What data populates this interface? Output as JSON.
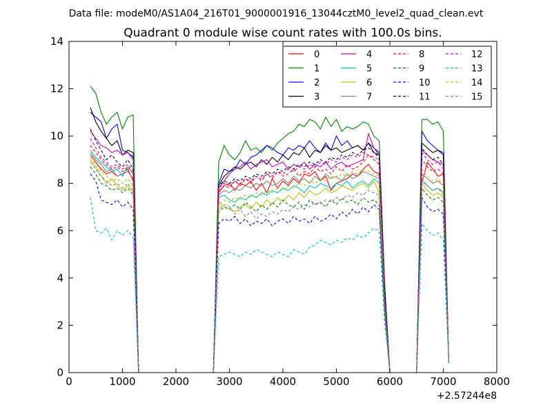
{
  "figure": {
    "suptitle": "Data file: modeM0/AS1A04_216T01_9000001916_13044cztM0_level2_quad_clean.evt"
  },
  "chart_data": {
    "type": "line",
    "title": "Quadrant 0 module wise count rates with 100.0s bins.",
    "xlabel": "",
    "ylabel": "",
    "x_offset_label": "+2.57244e8",
    "xlim": [
      0,
      8000
    ],
    "ylim": [
      0,
      14
    ],
    "x_ticks": [
      0,
      1000,
      2000,
      3000,
      4000,
      5000,
      6000,
      7000,
      8000
    ],
    "y_ticks": [
      0,
      2,
      4,
      6,
      8,
      10,
      12,
      14
    ],
    "grid": false,
    "legend": {
      "placement": "top-right",
      "columns": 4
    },
    "x": [
      400,
      500,
      600,
      700,
      800,
      900,
      1000,
      1100,
      1200,
      1300,
      1400,
      2700,
      2800,
      2900,
      3000,
      3100,
      3200,
      3300,
      3400,
      3500,
      3600,
      3700,
      3800,
      3900,
      4000,
      4100,
      4200,
      4300,
      4400,
      4500,
      4600,
      4700,
      4800,
      4900,
      5000,
      5100,
      5200,
      5300,
      5400,
      5500,
      5600,
      5700,
      5800,
      5900,
      6000,
      6500,
      6600,
      6700,
      6800,
      6900,
      7000,
      7100
    ],
    "series": [
      {
        "name": "0",
        "color": "#ff0000",
        "dash": "solid",
        "values": [
          9.2,
          8.9,
          8.6,
          8.4,
          8.5,
          8.3,
          8.4,
          8.6,
          8.1,
          0.0,
          0.0,
          0.0,
          7.6,
          7.9,
          8.0,
          7.7,
          8.0,
          7.9,
          8.1,
          7.7,
          8.0,
          7.6,
          8.2,
          7.8,
          8.1,
          7.9,
          8.2,
          8.0,
          8.4,
          8.3,
          8.5,
          8.1,
          8.3,
          7.7,
          8.0,
          8.1,
          8.2,
          8.4,
          8.3,
          8.6,
          8.8,
          8.5,
          8.4,
          3.2,
          0.0,
          0.0,
          8.0,
          8.9,
          8.6,
          8.3,
          8.4,
          0.5
        ]
      },
      {
        "name": "1",
        "color": "#008000",
        "dash": "solid",
        "values": [
          12.1,
          11.8,
          11.0,
          10.5,
          10.8,
          11.0,
          10.3,
          10.8,
          10.9,
          0.0,
          0.0,
          0.0,
          8.9,
          9.6,
          9.2,
          9.0,
          9.3,
          9.8,
          9.4,
          9.5,
          9.3,
          9.6,
          9.4,
          9.7,
          9.9,
          10.1,
          10.2,
          10.5,
          10.4,
          10.7,
          10.6,
          10.3,
          10.8,
          10.4,
          10.7,
          10.2,
          10.4,
          10.3,
          10.4,
          10.6,
          10.5,
          10.0,
          9.8,
          3.9,
          0.0,
          0.0,
          10.7,
          10.7,
          10.5,
          10.6,
          10.2,
          0.4
        ]
      },
      {
        "name": "2",
        "color": "#0000ff",
        "dash": "solid",
        "values": [
          11.0,
          10.8,
          10.6,
          9.9,
          10.3,
          10.5,
          9.4,
          9.3,
          9.1,
          0.0,
          0.0,
          0.0,
          8.0,
          8.6,
          8.5,
          8.6,
          9.0,
          8.8,
          9.1,
          9.2,
          9.4,
          9.6,
          9.5,
          9.3,
          9.2,
          9.5,
          9.4,
          9.6,
          9.5,
          9.8,
          9.5,
          9.3,
          9.7,
          9.4,
          10.0,
          9.6,
          9.8,
          9.5,
          9.6,
          9.4,
          9.7,
          9.5,
          9.3,
          3.7,
          0.0,
          0.0,
          10.2,
          9.8,
          9.6,
          9.4,
          9.3,
          0.5
        ]
      },
      {
        "name": "3",
        "color": "#000000",
        "dash": "solid",
        "values": [
          11.2,
          10.6,
          10.2,
          9.9,
          9.6,
          9.8,
          9.2,
          9.4,
          9.3,
          0.0,
          0.0,
          0.0,
          7.9,
          8.3,
          8.5,
          8.7,
          8.6,
          8.8,
          8.9,
          8.7,
          9.0,
          8.8,
          9.1,
          8.9,
          9.2,
          9.0,
          9.3,
          9.2,
          9.5,
          9.1,
          9.4,
          9.3,
          9.6,
          9.4,
          9.5,
          9.3,
          9.4,
          9.5,
          9.6,
          9.4,
          9.7,
          9.3,
          9.2,
          3.6,
          0.0,
          0.0,
          9.7,
          9.5,
          9.3,
          9.4,
          9.2,
          0.5
        ]
      },
      {
        "name": "4",
        "color": "#bf00bf",
        "dash": "solid",
        "values": [
          10.2,
          9.9,
          9.6,
          9.5,
          9.3,
          9.4,
          9.2,
          9.3,
          9.0,
          0.0,
          0.0,
          0.0,
          7.8,
          8.1,
          8.4,
          8.6,
          8.7,
          8.9,
          8.6,
          8.8,
          8.9,
          9.0,
          8.7,
          8.8,
          8.9,
          8.6,
          8.8,
          8.7,
          8.9,
          8.6,
          8.8,
          8.7,
          8.9,
          8.6,
          8.8,
          8.9,
          8.7,
          8.8,
          8.9,
          9.0,
          10.1,
          9.5,
          9.2,
          3.4,
          0.0,
          0.0,
          9.4,
          9.2,
          9.0,
          8.9,
          8.8,
          0.5
        ]
      },
      {
        "name": "5",
        "color": "#00bfbf",
        "dash": "solid",
        "values": [
          9.4,
          9.1,
          8.9,
          8.7,
          8.5,
          8.6,
          8.3,
          8.7,
          8.4,
          0.0,
          0.0,
          0.0,
          7.4,
          7.5,
          7.3,
          7.2,
          7.4,
          7.3,
          7.5,
          7.4,
          7.6,
          7.5,
          7.7,
          7.6,
          7.8,
          7.7,
          7.9,
          7.8,
          7.6,
          7.9,
          7.8,
          8.0,
          7.9,
          7.8,
          8.0,
          7.9,
          8.1,
          7.8,
          8.0,
          8.1,
          7.9,
          8.2,
          8.0,
          3.0,
          0.0,
          0.0,
          8.1,
          7.9,
          7.7,
          7.8,
          7.6,
          0.5
        ]
      },
      {
        "name": "6",
        "color": "#bfbf00",
        "dash": "solid",
        "values": [
          9.0,
          8.7,
          8.3,
          8.0,
          8.2,
          7.9,
          7.7,
          7.9,
          7.6,
          0.0,
          0.0,
          0.0,
          7.2,
          7.0,
          6.9,
          6.8,
          7.0,
          7.1,
          6.9,
          7.2,
          7.0,
          7.3,
          7.1,
          7.4,
          7.2,
          7.5,
          7.3,
          7.6,
          7.4,
          7.7,
          7.5,
          7.6,
          7.8,
          7.6,
          7.7,
          7.9,
          7.8,
          7.7,
          7.9,
          8.0,
          7.8,
          8.1,
          7.6,
          2.8,
          0.0,
          0.0,
          8.0,
          7.7,
          7.5,
          7.6,
          7.4,
          0.5
        ]
      },
      {
        "name": "7",
        "color": "#808080",
        "dash": "solid",
        "values": [
          9.3,
          9.0,
          8.8,
          8.5,
          8.6,
          8.3,
          8.4,
          8.5,
          8.2,
          0.0,
          0.0,
          0.0,
          7.5,
          7.7,
          7.6,
          7.8,
          7.7,
          7.9,
          7.8,
          8.0,
          7.9,
          8.1,
          7.9,
          8.0,
          8.2,
          8.0,
          8.3,
          8.1,
          8.2,
          8.0,
          8.3,
          8.1,
          8.4,
          8.2,
          8.3,
          8.1,
          8.4,
          8.2,
          8.3,
          8.5,
          8.4,
          8.3,
          8.2,
          3.1,
          0.0,
          0.0,
          8.4,
          8.2,
          8.0,
          8.1,
          7.9,
          0.5
        ]
      },
      {
        "name": "8",
        "color": "#ff0000",
        "dash": "dashed",
        "values": [
          9.6,
          9.3,
          9.0,
          8.8,
          8.6,
          8.7,
          8.5,
          8.7,
          8.4,
          0.0,
          0.0,
          0.0,
          7.7,
          7.9,
          7.8,
          8.1,
          7.9,
          8.2,
          8.0,
          8.3,
          8.1,
          8.4,
          8.2,
          8.5,
          8.3,
          8.4,
          8.6,
          8.3,
          8.5,
          8.4,
          8.7,
          8.5,
          8.6,
          8.4,
          8.7,
          8.5,
          8.8,
          8.6,
          8.7,
          8.9,
          9.2,
          9.0,
          8.8,
          3.3,
          0.0,
          0.0,
          9.0,
          8.7,
          8.5,
          8.6,
          8.4,
          0.5
        ]
      },
      {
        "name": "9",
        "color": "#008000",
        "dash": "dashed",
        "values": [
          8.7,
          8.4,
          8.0,
          7.9,
          7.7,
          7.8,
          7.6,
          7.8,
          7.5,
          0.0,
          0.0,
          0.0,
          6.8,
          7.0,
          6.9,
          7.1,
          6.9,
          7.2,
          7.0,
          6.8,
          7.1,
          6.9,
          7.2,
          7.0,
          7.3,
          7.1,
          7.0,
          7.2,
          6.9,
          7.3,
          7.1,
          7.2,
          7.0,
          7.3,
          7.1,
          7.4,
          7.2,
          7.3,
          7.1,
          7.4,
          7.2,
          7.3,
          7.1,
          2.7,
          0.0,
          0.0,
          7.8,
          7.5,
          7.3,
          7.4,
          7.2,
          0.5
        ]
      },
      {
        "name": "10",
        "color": "#0000ff",
        "dash": "dashed",
        "values": [
          8.4,
          8.1,
          7.3,
          7.2,
          7.1,
          7.3,
          7.0,
          7.2,
          6.9,
          0.0,
          0.0,
          0.0,
          6.3,
          6.5,
          6.4,
          6.6,
          6.3,
          6.5,
          6.2,
          6.4,
          6.3,
          6.5,
          6.2,
          6.4,
          6.5,
          6.3,
          6.6,
          6.4,
          6.5,
          6.3,
          6.6,
          6.4,
          6.5,
          6.7,
          6.5,
          6.8,
          6.6,
          6.9,
          6.7,
          7.0,
          6.8,
          7.1,
          6.9,
          2.5,
          0.0,
          0.0,
          7.4,
          7.0,
          6.8,
          6.9,
          6.7,
          0.5
        ]
      },
      {
        "name": "11",
        "color": "#000000",
        "dash": "dashed",
        "values": [
          10.3,
          9.8,
          9.4,
          9.0,
          9.2,
          8.9,
          8.7,
          9.0,
          8.6,
          0.0,
          0.0,
          0.0,
          7.9,
          8.1,
          8.0,
          8.2,
          8.1,
          8.3,
          8.2,
          8.4,
          8.3,
          8.5,
          8.4,
          8.6,
          8.5,
          8.7,
          8.6,
          8.8,
          8.7,
          8.9,
          8.8,
          9.0,
          8.9,
          9.1,
          9.0,
          9.2,
          9.1,
          9.3,
          9.2,
          9.4,
          9.5,
          9.3,
          9.1,
          3.4,
          0.0,
          0.0,
          9.5,
          9.2,
          9.0,
          9.1,
          8.8,
          0.5
        ]
      },
      {
        "name": "12",
        "color": "#bf00bf",
        "dash": "dashed",
        "values": [
          9.9,
          9.5,
          9.1,
          8.9,
          8.7,
          8.8,
          8.6,
          8.8,
          8.5,
          0.0,
          0.0,
          0.0,
          7.8,
          8.0,
          7.9,
          8.1,
          8.0,
          8.2,
          8.1,
          8.3,
          8.2,
          8.4,
          8.3,
          8.5,
          8.4,
          8.6,
          8.5,
          8.7,
          8.6,
          8.8,
          8.7,
          8.9,
          8.8,
          9.0,
          8.9,
          9.1,
          9.0,
          9.2,
          9.1,
          9.3,
          9.2,
          9.1,
          9.0,
          3.3,
          0.0,
          0.0,
          9.3,
          9.0,
          8.8,
          8.9,
          8.6,
          0.5
        ]
      },
      {
        "name": "13",
        "color": "#00bfbf",
        "dash": "dashed",
        "values": [
          7.4,
          6.0,
          5.9,
          6.1,
          5.6,
          6.0,
          5.8,
          6.0,
          5.7,
          0.0,
          0.0,
          0.0,
          4.9,
          5.0,
          5.1,
          5.0,
          4.9,
          5.1,
          5.0,
          5.2,
          5.1,
          5.0,
          4.9,
          5.1,
          5.0,
          4.9,
          5.2,
          5.1,
          5.0,
          5.3,
          5.4,
          5.6,
          5.5,
          5.4,
          5.6,
          5.5,
          5.7,
          5.6,
          5.8,
          5.7,
          5.9,
          6.1,
          6.0,
          2.2,
          0.0,
          0.0,
          6.3,
          6.0,
          5.8,
          5.9,
          5.6,
          0.4
        ]
      },
      {
        "name": "14",
        "color": "#bfbf00",
        "dash": "dashed",
        "values": [
          9.1,
          8.8,
          8.5,
          8.3,
          8.1,
          8.2,
          8.0,
          8.2,
          7.9,
          0.0,
          0.0,
          0.0,
          7.1,
          7.3,
          7.2,
          7.4,
          7.3,
          7.5,
          7.4,
          7.6,
          7.5,
          7.7,
          7.6,
          7.8,
          7.7,
          7.9,
          7.8,
          8.0,
          7.9,
          8.1,
          8.0,
          8.2,
          8.1,
          8.3,
          8.2,
          8.4,
          8.3,
          8.5,
          8.4,
          8.6,
          8.5,
          8.4,
          8.3,
          3.0,
          0.0,
          0.0,
          8.6,
          8.3,
          8.1,
          8.2,
          7.9,
          0.5
        ]
      },
      {
        "name": "15",
        "color": "#808080",
        "dash": "dashed",
        "values": [
          8.9,
          8.6,
          8.3,
          8.1,
          7.9,
          8.0,
          7.8,
          8.0,
          7.7,
          0.0,
          0.0,
          0.0,
          6.9,
          7.1,
          7.0,
          6.7,
          6.9,
          6.6,
          6.8,
          6.5,
          6.7,
          6.6,
          6.8,
          6.7,
          6.9,
          6.8,
          7.0,
          6.9,
          7.1,
          7.0,
          7.2,
          7.1,
          7.3,
          7.2,
          7.4,
          7.3,
          7.5,
          7.4,
          7.6,
          7.5,
          7.7,
          7.6,
          7.5,
          2.8,
          0.0,
          0.0,
          8.2,
          7.9,
          7.7,
          7.8,
          7.5,
          0.5
        ]
      }
    ]
  }
}
